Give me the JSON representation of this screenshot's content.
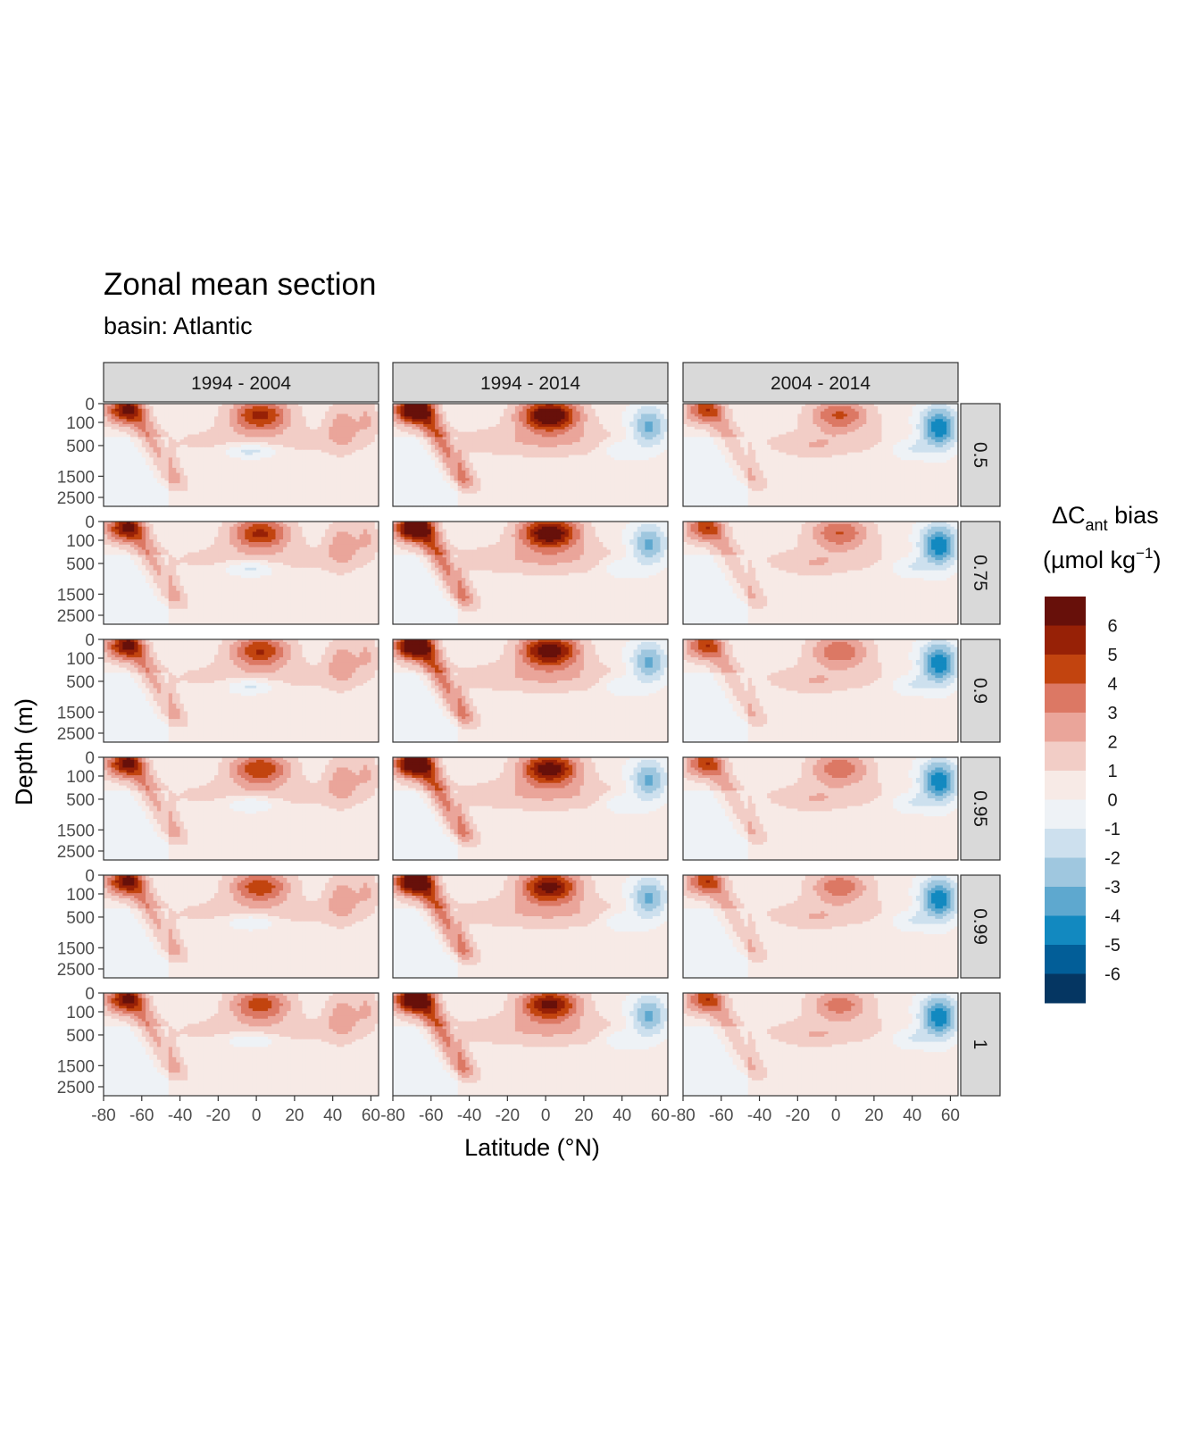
{
  "chart_data": {
    "type": "heatmap",
    "title": "Zonal mean section",
    "subtitle": "basin: Atlantic",
    "xlabel": "Latitude (°N)",
    "ylabel": "Depth (m)",
    "xlim": [
      -80,
      64
    ],
    "x_ticks": [
      -80,
      -60,
      -40,
      -20,
      0,
      20,
      40,
      60
    ],
    "x_tick_labels": [
      "-80",
      "-60",
      "-40",
      "-20",
      "0",
      "20",
      "40",
      "60"
    ],
    "ylim": [
      0,
      3000
    ],
    "y_ticks": [
      0,
      100,
      500,
      1500,
      2500
    ],
    "y_tick_labels": [
      "0",
      "100",
      "500",
      "1500",
      "2500"
    ],
    "y_scale": "square-root, reversed (depth increases downward)",
    "facet_columns": [
      "1994 - 2004",
      "1994 - 2014",
      "2004 - 2014"
    ],
    "facet_rows": [
      "0.5",
      "0.75",
      "0.9",
      "0.95",
      "0.99",
      "1"
    ],
    "legend": {
      "title_main": "ΔC",
      "title_sub": "ant",
      "title_rest": " bias",
      "unit_prefix": "(µmol kg",
      "unit_sup": "−1",
      "unit_suffix": ")",
      "placement": "right",
      "bins": [
        {
          "upper": "6+",
          "color": "#67100a"
        },
        {
          "upper": "6",
          "color": "#972106"
        },
        {
          "upper": "5",
          "color": "#c2440f"
        },
        {
          "upper": "4",
          "color": "#dc7864"
        },
        {
          "upper": "3",
          "color": "#eaa59a"
        },
        {
          "upper": "2",
          "color": "#f2cdc6"
        },
        {
          "upper": "1",
          "color": "#f7eae6"
        },
        {
          "upper": "0",
          "color": "#eef2f6"
        },
        {
          "upper": "-1",
          "color": "#cde0ee"
        },
        {
          "upper": "-2",
          "color": "#9fc7df"
        },
        {
          "upper": "-3",
          "color": "#5ea8cf"
        },
        {
          "upper": "-4",
          "color": "#1289c0"
        },
        {
          "upper": "-5",
          "color": "#025e98"
        },
        {
          "upper": "-6",
          "color": "#053662"
        }
      ],
      "labels": [
        "6",
        "5",
        "4",
        "3",
        "2",
        "1",
        "0",
        "-1",
        "-2",
        "-3",
        "-4",
        "-5",
        "-6"
      ]
    },
    "grid": false,
    "features": [
      {
        "name": "southern-ocean-surface-positive",
        "lat": [
          -78,
          -62
        ],
        "depth": [
          0,
          250
        ],
        "value": 4.5,
        "period": "all"
      },
      {
        "name": "antarctic-intermediate-tongue",
        "lat": [
          -62,
          -40
        ],
        "depth": [
          200,
          1200
        ],
        "value": 2.5,
        "period": "all"
      },
      {
        "name": "equatorial-surface-positive",
        "lat": [
          -10,
          15
        ],
        "depth": [
          0,
          250
        ],
        "value": 5,
        "period": "all"
      },
      {
        "name": "equatorial-subsurface-negative",
        "lat": [
          -15,
          15
        ],
        "depth": [
          400,
          700
        ],
        "value": -2,
        "period": "1994 - 2004"
      },
      {
        "name": "subpolar-north-atlantic-negative",
        "lat": [
          40,
          64
        ],
        "depth": [
          50,
          1500
        ],
        "value": -4,
        "period": "1994 - 2014, 2004 - 2014"
      },
      {
        "name": "north-atlantic-positive-band",
        "lat": [
          35,
          55
        ],
        "depth": [
          0,
          600
        ],
        "value": 2.5,
        "period": "1994 - 2004"
      }
    ]
  }
}
